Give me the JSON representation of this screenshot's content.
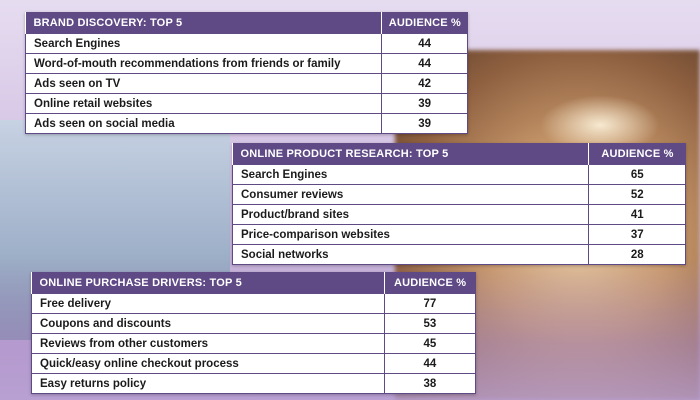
{
  "chart_data": [
    {
      "type": "table",
      "title": "BRAND DISCOVERY: TOP 5",
      "value_header": "AUDIENCE %",
      "categories": [
        "Search Engines",
        "Word-of-mouth recommendations from friends or family",
        "Ads seen on TV",
        "Online retail websites",
        "Ads seen on social media"
      ],
      "values": [
        44,
        44,
        42,
        39,
        39
      ]
    },
    {
      "type": "table",
      "title": "ONLINE PRODUCT RESEARCH: TOP 5",
      "value_header": "AUDIENCE %",
      "categories": [
        "Search Engines",
        "Consumer reviews",
        "Product/brand sites",
        "Price-comparison websites",
        "Social networks"
      ],
      "values": [
        65,
        52,
        41,
        37,
        28
      ]
    },
    {
      "type": "table",
      "title": "ONLINE PURCHASE DRIVERS: TOP 5",
      "value_header": "AUDIENCE %",
      "categories": [
        "Free delivery",
        "Coupons and discounts",
        "Reviews from other customers",
        "Quick/easy online checkout process",
        "Easy returns policy"
      ],
      "values": [
        77,
        53,
        45,
        44,
        38
      ]
    }
  ],
  "colors": {
    "header": "#5f4a86",
    "border": "#5f4a86",
    "text": "#1b1b1b"
  }
}
